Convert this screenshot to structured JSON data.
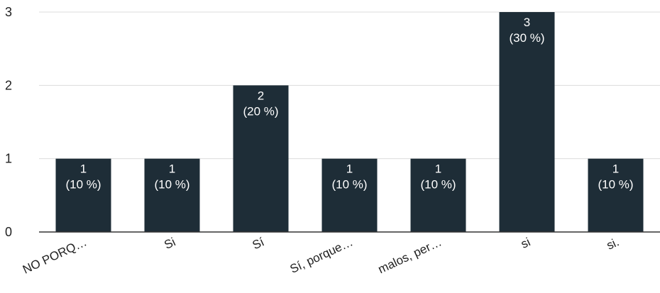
{
  "chart_data": {
    "type": "bar",
    "categories": [
      "NO PORQ…",
      "Si",
      "Sí",
      "Sí, porque…",
      "malos, per…",
      "si",
      "si."
    ],
    "values": [
      1,
      1,
      2,
      1,
      1,
      3,
      1
    ],
    "percent_labels": [
      "(10 %)",
      "(10 %)",
      "(20 %)",
      "(10 %)",
      "(10 %)",
      "(30 %)",
      "(10 %)"
    ],
    "ylim": [
      0,
      3
    ],
    "yticks": [
      0,
      1,
      2,
      3
    ],
    "grid": true,
    "bar_color": "#1e2d37"
  }
}
